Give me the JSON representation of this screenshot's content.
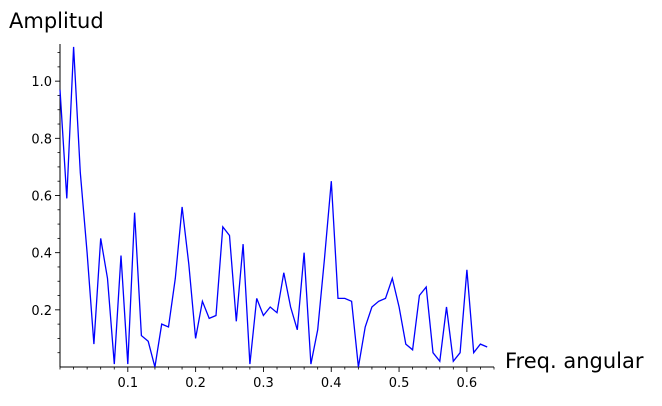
{
  "chart_data": {
    "type": "line",
    "ylabel": "Amplitud",
    "xlabel": "Freq. angular",
    "xlim": [
      0,
      0.64
    ],
    "ylim": [
      0,
      1.13
    ],
    "color": "#0000ff",
    "grid": false,
    "x_major_ticks": [
      0.1,
      0.2,
      0.3,
      0.4,
      0.5,
      0.6
    ],
    "x_tick_labels": [
      "0.1",
      "0.2",
      "0.3",
      "0.4",
      "0.5",
      "0.6"
    ],
    "y_major_ticks": [
      0.2,
      0.4,
      0.6,
      0.8,
      1.0
    ],
    "y_tick_labels": [
      "0.2",
      "0.4",
      "0.6",
      "0.8",
      "1.0"
    ],
    "x": [
      0.0,
      0.01,
      0.02,
      0.03,
      0.04,
      0.05,
      0.06,
      0.07,
      0.08,
      0.09,
      0.1,
      0.11,
      0.12,
      0.13,
      0.14,
      0.15,
      0.16,
      0.17,
      0.18,
      0.19,
      0.2,
      0.21,
      0.22,
      0.23,
      0.24,
      0.25,
      0.26,
      0.27,
      0.28,
      0.29,
      0.3,
      0.31,
      0.32,
      0.33,
      0.34,
      0.35,
      0.36,
      0.37,
      0.38,
      0.39,
      0.4,
      0.41,
      0.42,
      0.43,
      0.44,
      0.45,
      0.46,
      0.47,
      0.48,
      0.49,
      0.5,
      0.51,
      0.52,
      0.53,
      0.54,
      0.55,
      0.56,
      0.57,
      0.58,
      0.59,
      0.6,
      0.61,
      0.62,
      0.63
    ],
    "y": [
      0.97,
      0.59,
      1.12,
      0.68,
      0.4,
      0.08,
      0.45,
      0.31,
      0.01,
      0.39,
      0.01,
      0.54,
      0.11,
      0.09,
      0.0,
      0.15,
      0.14,
      0.31,
      0.56,
      0.36,
      0.1,
      0.23,
      0.17,
      0.18,
      0.49,
      0.46,
      0.16,
      0.43,
      0.01,
      0.24,
      0.18,
      0.21,
      0.19,
      0.33,
      0.21,
      0.13,
      0.4,
      0.01,
      0.13,
      0.38,
      0.65,
      0.24,
      0.24,
      0.23,
      0.0,
      0.14,
      0.21,
      0.23,
      0.24,
      0.31,
      0.21,
      0.08,
      0.06,
      0.25,
      0.28,
      0.05,
      0.02,
      0.21,
      0.02,
      0.05,
      0.34,
      0.05,
      0.08,
      0.07
    ]
  }
}
